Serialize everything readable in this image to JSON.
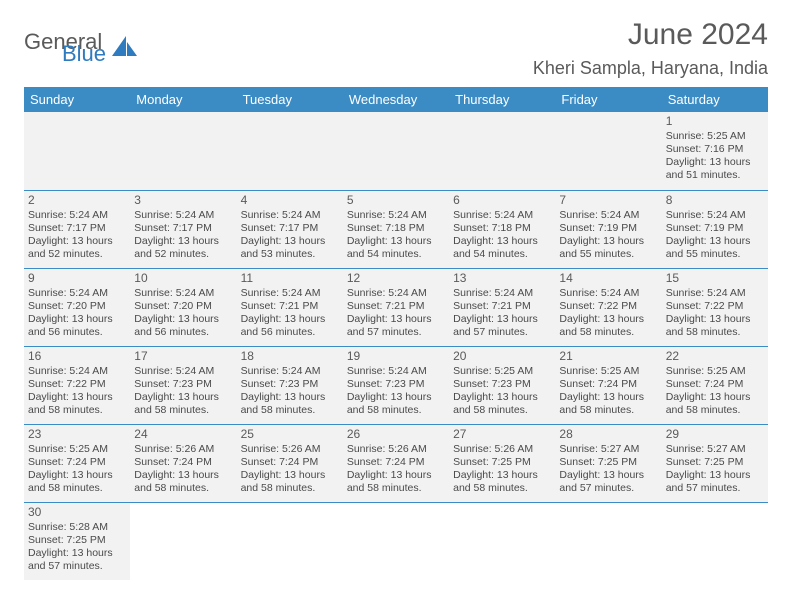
{
  "logo": {
    "text1": "General",
    "text2": "Blue"
  },
  "title": "June 2024",
  "location": "Kheri Sampla, Haryana, India",
  "dayHeaders": [
    "Sunday",
    "Monday",
    "Tuesday",
    "Wednesday",
    "Thursday",
    "Friday",
    "Saturday"
  ],
  "colors": {
    "headerBg": "#3b8bc4",
    "headerText": "#ffffff",
    "cellBg": "#f2f2f2",
    "border": "#3b8bc4",
    "text": "#4a4a4a",
    "titleText": "#5a5a5a",
    "logoBlue": "#2e7bbf"
  },
  "weeks": [
    [
      null,
      null,
      null,
      null,
      null,
      null,
      {
        "n": "1",
        "sr": "5:25 AM",
        "ss": "7:16 PM",
        "dl": "13 hours and 51 minutes."
      }
    ],
    [
      {
        "n": "2",
        "sr": "5:24 AM",
        "ss": "7:17 PM",
        "dl": "13 hours and 52 minutes."
      },
      {
        "n": "3",
        "sr": "5:24 AM",
        "ss": "7:17 PM",
        "dl": "13 hours and 52 minutes."
      },
      {
        "n": "4",
        "sr": "5:24 AM",
        "ss": "7:17 PM",
        "dl": "13 hours and 53 minutes."
      },
      {
        "n": "5",
        "sr": "5:24 AM",
        "ss": "7:18 PM",
        "dl": "13 hours and 54 minutes."
      },
      {
        "n": "6",
        "sr": "5:24 AM",
        "ss": "7:18 PM",
        "dl": "13 hours and 54 minutes."
      },
      {
        "n": "7",
        "sr": "5:24 AM",
        "ss": "7:19 PM",
        "dl": "13 hours and 55 minutes."
      },
      {
        "n": "8",
        "sr": "5:24 AM",
        "ss": "7:19 PM",
        "dl": "13 hours and 55 minutes."
      }
    ],
    [
      {
        "n": "9",
        "sr": "5:24 AM",
        "ss": "7:20 PM",
        "dl": "13 hours and 56 minutes."
      },
      {
        "n": "10",
        "sr": "5:24 AM",
        "ss": "7:20 PM",
        "dl": "13 hours and 56 minutes."
      },
      {
        "n": "11",
        "sr": "5:24 AM",
        "ss": "7:21 PM",
        "dl": "13 hours and 56 minutes."
      },
      {
        "n": "12",
        "sr": "5:24 AM",
        "ss": "7:21 PM",
        "dl": "13 hours and 57 minutes."
      },
      {
        "n": "13",
        "sr": "5:24 AM",
        "ss": "7:21 PM",
        "dl": "13 hours and 57 minutes."
      },
      {
        "n": "14",
        "sr": "5:24 AM",
        "ss": "7:22 PM",
        "dl": "13 hours and 58 minutes."
      },
      {
        "n": "15",
        "sr": "5:24 AM",
        "ss": "7:22 PM",
        "dl": "13 hours and 58 minutes."
      }
    ],
    [
      {
        "n": "16",
        "sr": "5:24 AM",
        "ss": "7:22 PM",
        "dl": "13 hours and 58 minutes."
      },
      {
        "n": "17",
        "sr": "5:24 AM",
        "ss": "7:23 PM",
        "dl": "13 hours and 58 minutes."
      },
      {
        "n": "18",
        "sr": "5:24 AM",
        "ss": "7:23 PM",
        "dl": "13 hours and 58 minutes."
      },
      {
        "n": "19",
        "sr": "5:24 AM",
        "ss": "7:23 PM",
        "dl": "13 hours and 58 minutes."
      },
      {
        "n": "20",
        "sr": "5:25 AM",
        "ss": "7:23 PM",
        "dl": "13 hours and 58 minutes."
      },
      {
        "n": "21",
        "sr": "5:25 AM",
        "ss": "7:24 PM",
        "dl": "13 hours and 58 minutes."
      },
      {
        "n": "22",
        "sr": "5:25 AM",
        "ss": "7:24 PM",
        "dl": "13 hours and 58 minutes."
      }
    ],
    [
      {
        "n": "23",
        "sr": "5:25 AM",
        "ss": "7:24 PM",
        "dl": "13 hours and 58 minutes."
      },
      {
        "n": "24",
        "sr": "5:26 AM",
        "ss": "7:24 PM",
        "dl": "13 hours and 58 minutes."
      },
      {
        "n": "25",
        "sr": "5:26 AM",
        "ss": "7:24 PM",
        "dl": "13 hours and 58 minutes."
      },
      {
        "n": "26",
        "sr": "5:26 AM",
        "ss": "7:24 PM",
        "dl": "13 hours and 58 minutes."
      },
      {
        "n": "27",
        "sr": "5:26 AM",
        "ss": "7:25 PM",
        "dl": "13 hours and 58 minutes."
      },
      {
        "n": "28",
        "sr": "5:27 AM",
        "ss": "7:25 PM",
        "dl": "13 hours and 57 minutes."
      },
      {
        "n": "29",
        "sr": "5:27 AM",
        "ss": "7:25 PM",
        "dl": "13 hours and 57 minutes."
      }
    ],
    [
      {
        "n": "30",
        "sr": "5:28 AM",
        "ss": "7:25 PM",
        "dl": "13 hours and 57 minutes."
      },
      null,
      null,
      null,
      null,
      null,
      null
    ]
  ],
  "labels": {
    "sunrise": "Sunrise:",
    "sunset": "Sunset:",
    "daylight": "Daylight:"
  }
}
